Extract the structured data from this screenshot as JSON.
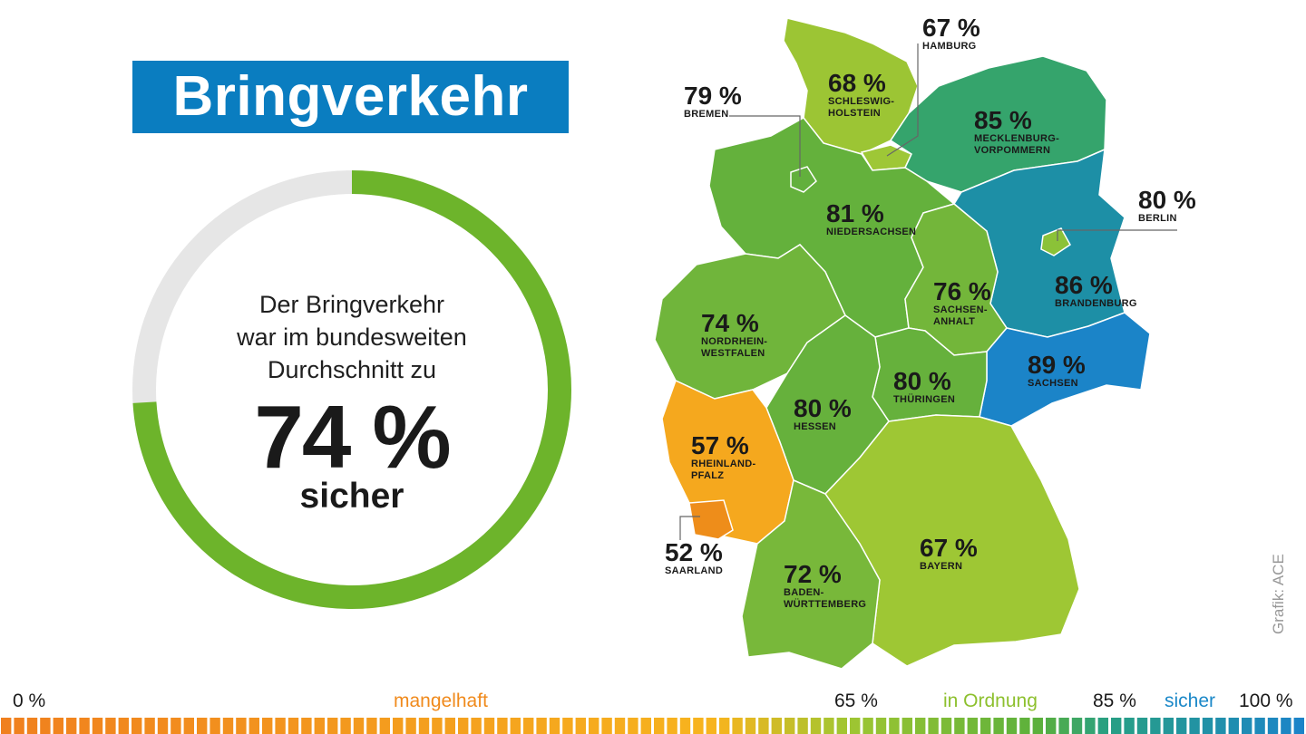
{
  "title": "Bringverkehr",
  "summary": {
    "line1": "Der Bringverkehr",
    "line2": "war im bundesweiten",
    "line3": "Durchschnitt zu",
    "percent": "74 %",
    "percent_value": 74,
    "rating": "sicher"
  },
  "colors": {
    "title_bg": "#0a7dc0",
    "donut_fill": "#6db42b",
    "donut_track": "#e6e6e6",
    "mangelhaft": "#f08a1c",
    "in_ordnung": "#8dc02e",
    "sicher": "#1b88c8"
  },
  "states": [
    {
      "key": "schleswig-holstein",
      "percent": "68 %",
      "name": "SCHLESWIG-\nHOLSTEIN",
      "value": 68,
      "color": "#9cc534"
    },
    {
      "key": "hamburg",
      "percent": "67 %",
      "name": "HAMBURG",
      "value": 67,
      "color": "#9ec736"
    },
    {
      "key": "bremen",
      "percent": "79 %",
      "name": "BREMEN",
      "value": 79,
      "color": "#62b03d"
    },
    {
      "key": "mecklenburg-vorpommern",
      "percent": "85 %",
      "name": "MECKLENBURG-\nVORPOMMERN",
      "value": 85,
      "color": "#35a46c"
    },
    {
      "key": "berlin",
      "percent": "80 %",
      "name": "BERLIN",
      "value": 80,
      "color": "#8bc238"
    },
    {
      "key": "niedersachsen",
      "percent": "81 %",
      "name": "NIEDERSACHSEN",
      "value": 81,
      "color": "#64b13c"
    },
    {
      "key": "brandenburg",
      "percent": "86 %",
      "name": "BRANDENBURG",
      "value": 86,
      "color": "#1d8fa6"
    },
    {
      "key": "sachsen-anhalt",
      "percent": "76 %",
      "name": "SACHSEN-\nANHALT",
      "value": 76,
      "color": "#73b63a"
    },
    {
      "key": "nordrhein-westfalen",
      "percent": "74 %",
      "name": "NORDRHEIN-\nWESTFALEN",
      "value": 74,
      "color": "#70b53b"
    },
    {
      "key": "sachsen",
      "percent": "89 %",
      "name": "SACHSEN",
      "value": 89,
      "color": "#1b84c8"
    },
    {
      "key": "thueringen",
      "percent": "80 %",
      "name": "THÜRINGEN",
      "value": 80,
      "color": "#66b13c"
    },
    {
      "key": "hessen",
      "percent": "80 %",
      "name": "HESSEN",
      "value": 80,
      "color": "#66b13c"
    },
    {
      "key": "rheinland-pfalz",
      "percent": "57 %",
      "name": "RHEINLAND-\nPFALZ",
      "value": 57,
      "color": "#f5a81e"
    },
    {
      "key": "saarland",
      "percent": "52 %",
      "name": "SAARLAND",
      "value": 52,
      "color": "#ee8d1a"
    },
    {
      "key": "bayern",
      "percent": "67 %",
      "name": "BAYERN",
      "value": 67,
      "color": "#9ec734"
    },
    {
      "key": "baden-wuerttemberg",
      "percent": "72 %",
      "name": "BADEN-\nWÜRTTEMBERG",
      "value": 72,
      "color": "#78b83a"
    }
  ],
  "credit": "Grafik: ACE",
  "scale": {
    "label_0": "0 %",
    "label_mangelhaft": "mangelhaft",
    "label_65": "65 %",
    "label_in_ordnung": "in Ordnung",
    "label_85": "85 %",
    "label_sicher": "sicher",
    "label_100": "100 %"
  }
}
